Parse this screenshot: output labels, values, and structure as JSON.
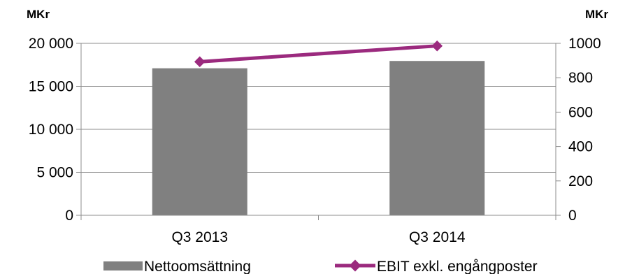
{
  "chart_data": {
    "type": "bar+line",
    "categories": [
      "Q3 2013",
      "Q3 2014"
    ],
    "series": [
      {
        "name": "Nettoomsättning",
        "type": "bar",
        "axis": "left",
        "values": [
          17100,
          17950
        ]
      },
      {
        "name": "EBIT exkl. engångposter",
        "type": "line",
        "axis": "right",
        "values": [
          893,
          985
        ]
      }
    ],
    "left_axis": {
      "label": "MKr",
      "ylim": [
        0,
        20000
      ],
      "ticks": [
        0,
        5000,
        10000,
        15000,
        20000
      ],
      "tick_labels": [
        "0",
        "5 000",
        "10 000",
        "15 000",
        "20 000"
      ]
    },
    "right_axis": {
      "label": "MKr",
      "ylim": [
        0,
        1000
      ],
      "ticks": [
        0,
        200,
        400,
        600,
        800,
        1000
      ],
      "tick_labels": [
        "0",
        "200",
        "400",
        "600",
        "800",
        "1000"
      ]
    },
    "grid": "horizontal",
    "legend": "bottom",
    "colors": {
      "bar": "#808080",
      "line": "#9B2A7E",
      "grid": "#8c8c8c"
    }
  }
}
